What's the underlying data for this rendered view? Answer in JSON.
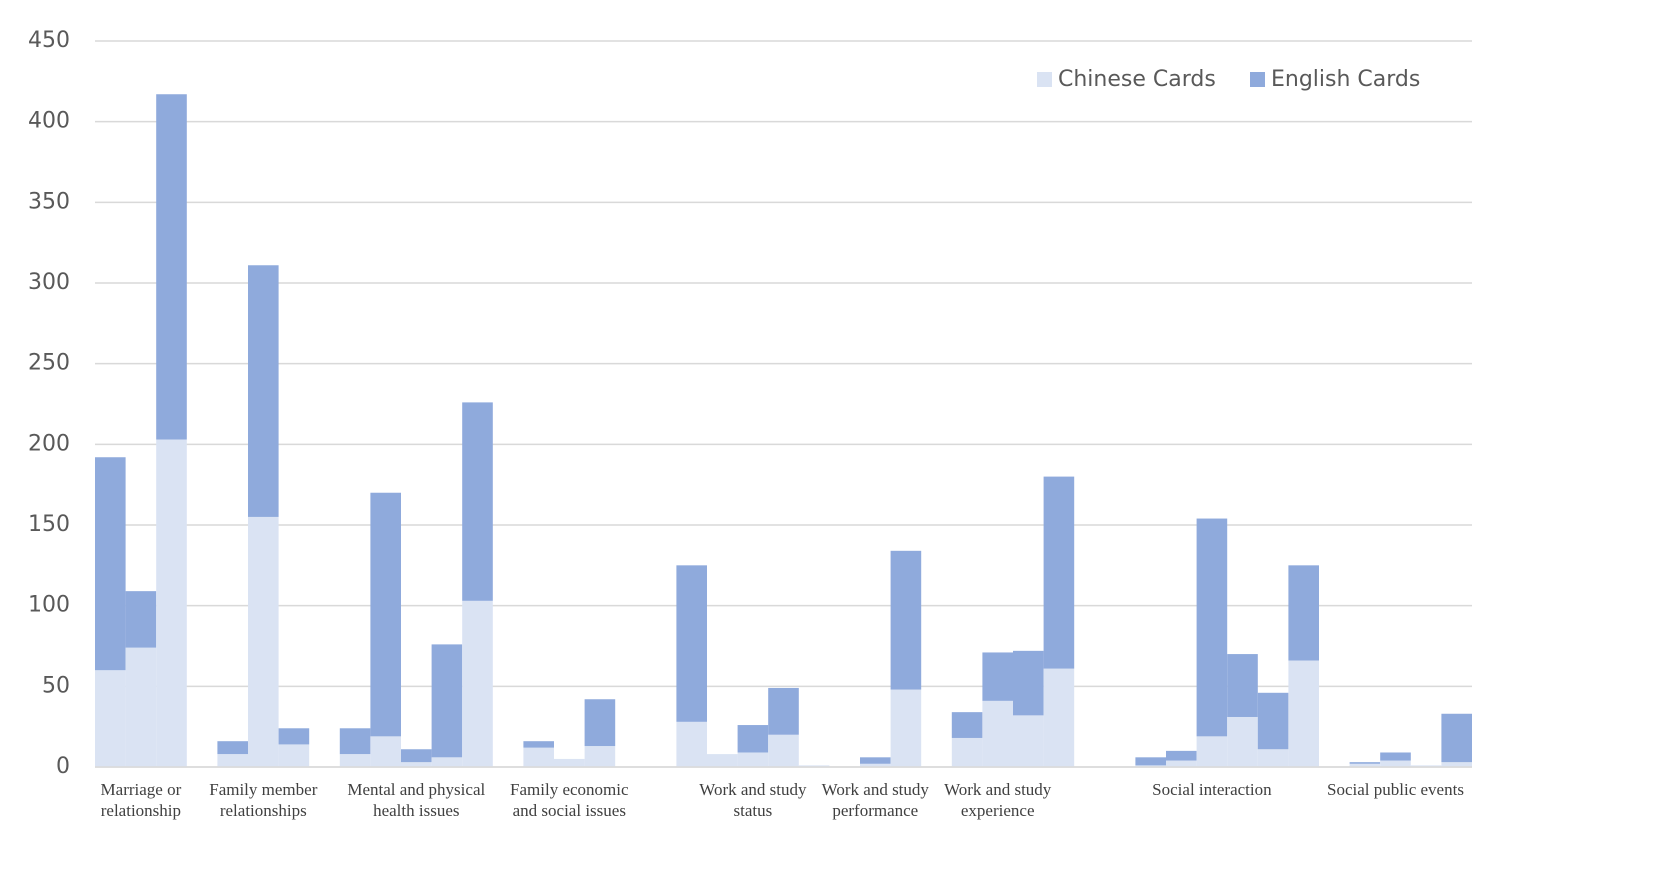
{
  "chart_data": {
    "type": "bar",
    "stacked": true,
    "categories": [
      null,
      "Marriage or relationship",
      null,
      null,
      null,
      "Family member relationships",
      null,
      null,
      null,
      null,
      "Mental and physical health issues",
      null,
      null,
      null,
      null,
      "Family economic and social issues",
      null,
      null,
      null,
      null,
      null,
      "Work and study status",
      null,
      null,
      null,
      "Work and study performance",
      null,
      null,
      null,
      "Work and study experience",
      null,
      null,
      null,
      null,
      null,
      null,
      "Social interaction",
      null,
      null,
      null,
      null,
      null,
      "Social public events",
      null,
      null
    ],
    "series": [
      {
        "name": "Chinese Cards",
        "color": "#dae3f3",
        "values": [
          60,
          74,
          203,
          null,
          8,
          155,
          14,
          null,
          8,
          19,
          3,
          6,
          103,
          null,
          12,
          5,
          13,
          null,
          null,
          28,
          8,
          9,
          20,
          1,
          null,
          2,
          48,
          null,
          18,
          41,
          32,
          61,
          null,
          null,
          1,
          4,
          19,
          31,
          11,
          66,
          null,
          2,
          4,
          1,
          3
        ]
      },
      {
        "name": "English Cards",
        "color": "#8faadc",
        "values": [
          132,
          35,
          214,
          null,
          8,
          156,
          10,
          null,
          16,
          151,
          8,
          70,
          123,
          null,
          4,
          0,
          29,
          null,
          null,
          97,
          0,
          17,
          29,
          0,
          null,
          4,
          86,
          null,
          16,
          30,
          40,
          119,
          null,
          null,
          5,
          6,
          135,
          39,
          35,
          59,
          null,
          1,
          5,
          0,
          30
        ]
      }
    ],
    "ylim": [
      0,
      450
    ],
    "yticks": [
      0,
      50,
      100,
      150,
      200,
      250,
      300,
      350,
      400,
      450
    ],
    "grid": true,
    "legend": "top-right"
  }
}
